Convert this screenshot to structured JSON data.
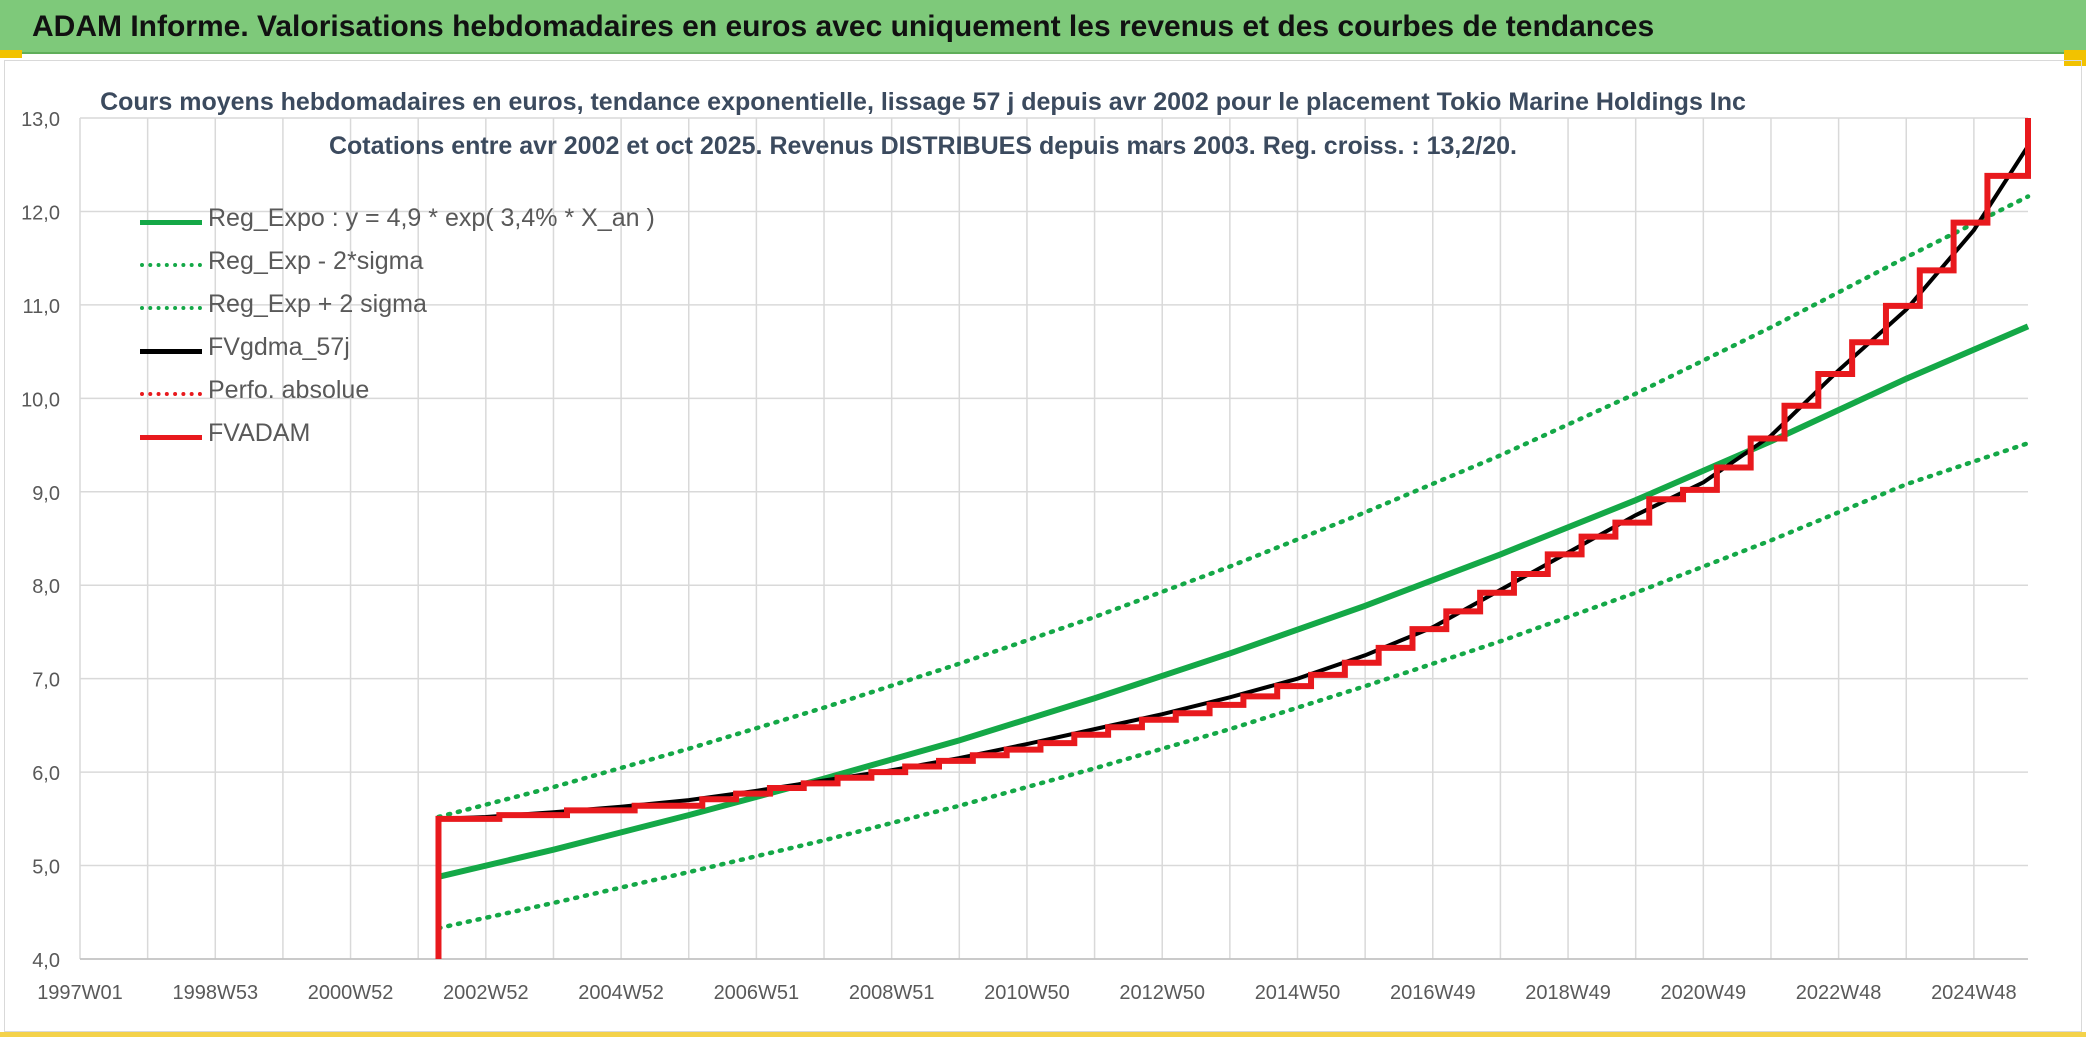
{
  "banner": {
    "text": "ADAM Informe. Valorisations hebdomadaires en euros avec uniquement les revenus et des courbes de tendances"
  },
  "chart_data": {
    "type": "line",
    "title": "Cours moyens hebdomadaires en euros, tendance exponentielle, lissage 57 j depuis avr 2002 pour le placement Tokio Marine Holdings Inc",
    "subtitle": "Cotations entre avr 2002 et oct 2025. Revenus DISTRIBUES depuis mars 2003. Reg. croiss. : 13,2/20.",
    "xlabel": "",
    "ylabel": "",
    "xlim": [
      1997.0,
      2025.8
    ],
    "ylim": [
      4.0,
      13.0
    ],
    "y_ticks": [
      "4,0",
      "5,0",
      "6,0",
      "7,0",
      "8,0",
      "9,0",
      "10,0",
      "11,0",
      "12,0",
      "13,0"
    ],
    "x_ticks": [
      {
        "label": "1997W01",
        "year": 1997.0
      },
      {
        "label": "1998W53",
        "year": 1999.0
      },
      {
        "label": "2000W52",
        "year": 2001.0
      },
      {
        "label": "2002W52",
        "year": 2003.0
      },
      {
        "label": "2004W52",
        "year": 2005.0
      },
      {
        "label": "2006W51",
        "year": 2007.0
      },
      {
        "label": "2008W51",
        "year": 2009.0
      },
      {
        "label": "2010W50",
        "year": 2011.0
      },
      {
        "label": "2012W50",
        "year": 2013.0
      },
      {
        "label": "2014W50",
        "year": 2015.0
      },
      {
        "label": "2016W49",
        "year": 2017.0
      },
      {
        "label": "2018W49",
        "year": 2019.0
      },
      {
        "label": "2020W49",
        "year": 2021.0
      },
      {
        "label": "2022W48",
        "year": 2023.0
      },
      {
        "label": "2024W48",
        "year": 2025.0
      }
    ],
    "grid": true,
    "legend_position": "top-left",
    "series": [
      {
        "name": "Reg_Expo : y = 4,9 * exp( 3,4% *  X_an )",
        "color": "#14a847",
        "style": "solid",
        "x": [
          2002.3,
          2004.0,
          2006.0,
          2008.0,
          2010.0,
          2012.0,
          2014.0,
          2016.0,
          2018.0,
          2020.0,
          2022.0,
          2024.0,
          2025.8
        ],
        "values": [
          4.88,
          5.17,
          5.54,
          5.93,
          6.34,
          6.79,
          7.27,
          7.78,
          8.33,
          8.91,
          9.54,
          10.21,
          10.77
        ]
      },
      {
        "name": "Reg_Exp - 2*sigma",
        "color": "#14a847",
        "style": "dotted",
        "x": [
          2002.3,
          2004.0,
          2006.0,
          2008.0,
          2010.0,
          2012.0,
          2014.0,
          2016.0,
          2018.0,
          2020.0,
          2022.0,
          2024.0,
          2025.8
        ],
        "values": [
          4.33,
          4.6,
          4.93,
          5.27,
          5.64,
          6.04,
          6.46,
          6.92,
          7.4,
          7.92,
          8.48,
          9.08,
          9.52
        ]
      },
      {
        "name": "Reg_Exp + 2 sigma",
        "color": "#14a847",
        "style": "dotted",
        "x": [
          2002.3,
          2004.0,
          2006.0,
          2008.0,
          2010.0,
          2012.0,
          2014.0,
          2016.0,
          2018.0,
          2020.0,
          2022.0,
          2024.0,
          2025.8
        ],
        "values": [
          5.52,
          5.84,
          6.25,
          6.69,
          7.16,
          7.66,
          8.2,
          8.78,
          9.39,
          10.05,
          10.76,
          11.51,
          12.16
        ]
      },
      {
        "name": "FVgdma_57j",
        "color": "#000000",
        "style": "solid",
        "x": [
          2002.3,
          2003.0,
          2004.0,
          2005.0,
          2006.0,
          2007.0,
          2008.0,
          2009.0,
          2010.0,
          2011.0,
          2012.0,
          2013.0,
          2014.0,
          2015.0,
          2016.0,
          2017.0,
          2018.0,
          2019.0,
          2020.0,
          2021.0,
          2022.0,
          2023.0,
          2024.0,
          2025.0,
          2025.8
        ],
        "values": [
          5.5,
          5.52,
          5.57,
          5.63,
          5.7,
          5.8,
          5.91,
          6.02,
          6.15,
          6.3,
          6.46,
          6.62,
          6.8,
          7.0,
          7.25,
          7.55,
          7.95,
          8.35,
          8.75,
          9.1,
          9.6,
          10.3,
          10.95,
          11.8,
          12.7
        ]
      },
      {
        "name": "Perfo. absolue",
        "color": "#e8191d",
        "style": "dotted",
        "x": [],
        "values": []
      },
      {
        "name": "FVADAM",
        "color": "#e8191d",
        "style": "step",
        "x": [
          2002.3,
          2002.3,
          2003.2,
          2004.2,
          2005.2,
          2006.2,
          2006.7,
          2007.2,
          2007.7,
          2008.2,
          2008.7,
          2009.2,
          2009.7,
          2010.2,
          2010.7,
          2011.2,
          2011.7,
          2012.2,
          2012.7,
          2013.2,
          2013.7,
          2014.2,
          2014.7,
          2015.2,
          2015.7,
          2016.2,
          2016.7,
          2017.2,
          2017.7,
          2018.2,
          2018.7,
          2019.2,
          2019.7,
          2020.2,
          2020.7,
          2021.2,
          2021.7,
          2022.2,
          2022.7,
          2023.2,
          2023.7,
          2024.2,
          2024.7,
          2025.2,
          2025.8
        ],
        "values": [
          4.0,
          5.5,
          5.54,
          5.59,
          5.64,
          5.71,
          5.77,
          5.83,
          5.88,
          5.94,
          6.0,
          6.06,
          6.12,
          6.18,
          6.24,
          6.31,
          6.4,
          6.48,
          6.56,
          6.63,
          6.72,
          6.81,
          6.92,
          7.04,
          7.17,
          7.33,
          7.53,
          7.72,
          7.92,
          8.12,
          8.33,
          8.52,
          8.67,
          8.92,
          9.02,
          9.26,
          9.57,
          9.92,
          10.26,
          10.6,
          10.99,
          11.37,
          11.88,
          12.38,
          13.0
        ]
      }
    ]
  }
}
